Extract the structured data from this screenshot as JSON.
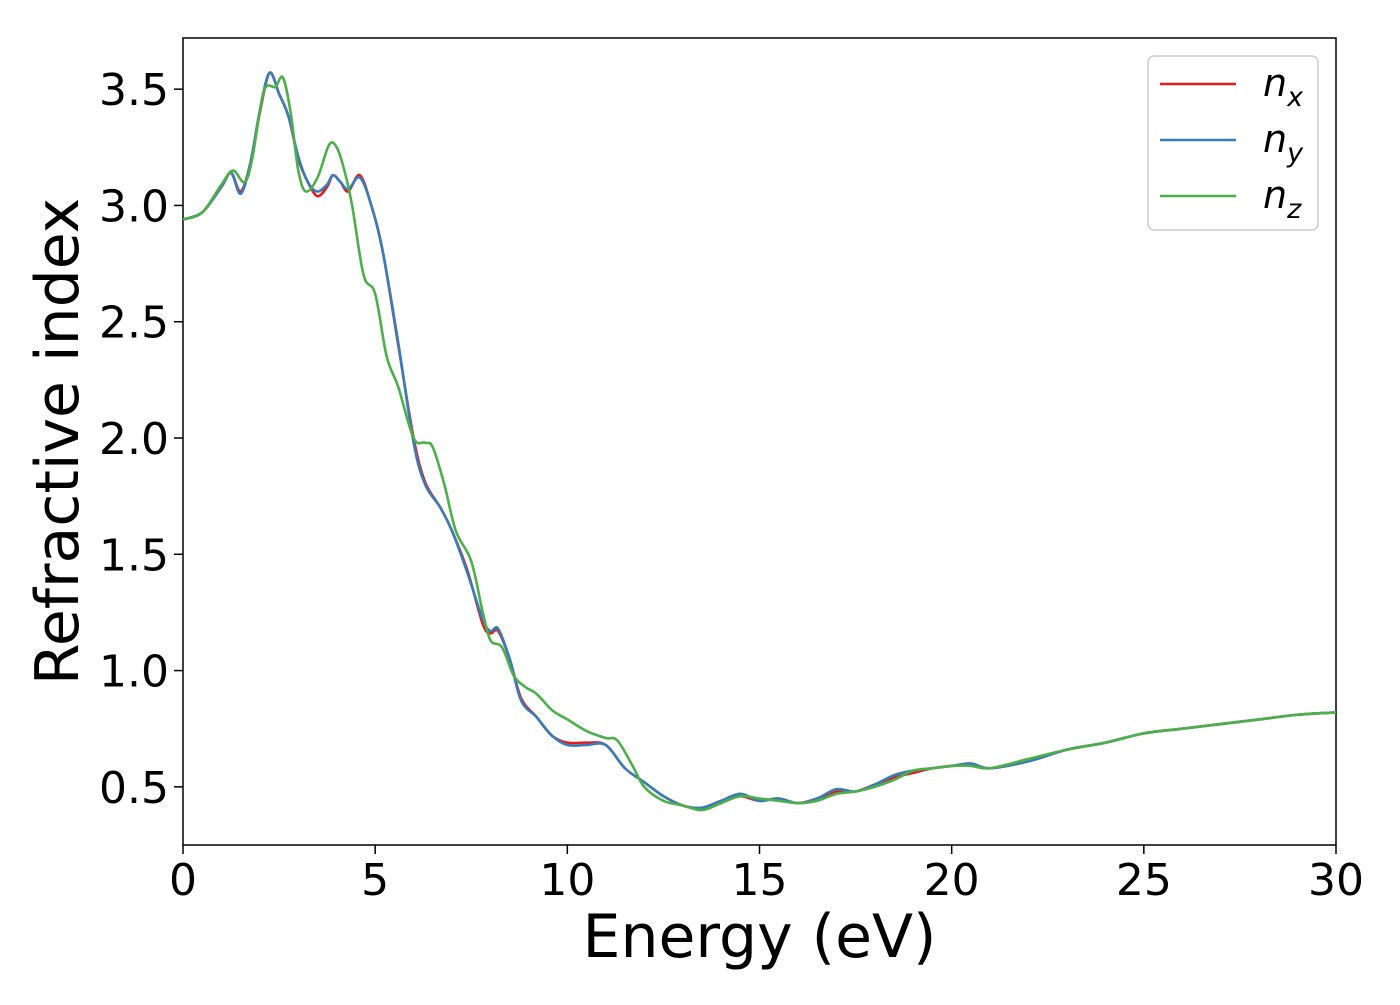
{
  "chart_data": {
    "type": "line",
    "title": "",
    "xlabel": "Energy (eV)",
    "ylabel": "Refractive index",
    "xlim": [
      0,
      30
    ],
    "ylim": [
      0.25,
      3.72
    ],
    "xticks": [
      0,
      5,
      10,
      15,
      20,
      25,
      30
    ],
    "xtick_labels": [
      "0",
      "5",
      "10",
      "15",
      "20",
      "25",
      "30"
    ],
    "yticks": [
      0.5,
      1.0,
      1.5,
      2.0,
      2.5,
      3.0,
      3.5
    ],
    "ytick_labels": [
      "0.5",
      "1.0",
      "1.5",
      "2.0",
      "2.5",
      "3.0",
      "3.5"
    ],
    "grid": false,
    "legend_position": "top-right",
    "series": [
      {
        "name": "n_x",
        "label_base": "n",
        "label_sub": "x",
        "color": "#e41a1c",
        "x": [
          0,
          0.5,
          1.0,
          1.25,
          1.5,
          1.75,
          2.0,
          2.25,
          2.5,
          2.75,
          3.0,
          3.25,
          3.5,
          3.75,
          3.9,
          4.1,
          4.3,
          4.6,
          4.9,
          5.2,
          5.6,
          6.0,
          6.3,
          6.7,
          7.0,
          7.4,
          7.8,
          8.0,
          8.2,
          8.5,
          8.8,
          9.2,
          9.6,
          10.0,
          10.5,
          11.0,
          11.5,
          12.0,
          12.5,
          13.0,
          13.5,
          14.0,
          14.5,
          15.0,
          15.5,
          16.0,
          16.5,
          17.0,
          17.5,
          18.0,
          18.5,
          19.0,
          19.5,
          20.0,
          20.5,
          21.0,
          22.0,
          23.0,
          24.0,
          25.0,
          26.0,
          27.0,
          28.0,
          29.0,
          30.0
        ],
        "values": [
          2.94,
          2.97,
          3.08,
          3.14,
          3.06,
          3.18,
          3.4,
          3.57,
          3.48,
          3.38,
          3.2,
          3.1,
          3.04,
          3.08,
          3.13,
          3.1,
          3.06,
          3.13,
          3.0,
          2.8,
          2.4,
          2.0,
          1.81,
          1.7,
          1.6,
          1.43,
          1.2,
          1.16,
          1.17,
          1.05,
          0.88,
          0.8,
          0.72,
          0.69,
          0.69,
          0.68,
          0.58,
          0.52,
          0.46,
          0.42,
          0.41,
          0.44,
          0.46,
          0.44,
          0.45,
          0.43,
          0.45,
          0.48,
          0.48,
          0.51,
          0.54,
          0.56,
          0.58,
          0.59,
          0.6,
          0.58,
          0.61,
          0.66,
          0.69,
          0.73,
          0.75,
          0.77,
          0.79,
          0.81,
          0.82
        ]
      },
      {
        "name": "n_y",
        "label_base": "n",
        "label_sub": "y",
        "color": "#377eb8",
        "x": [
          0,
          0.5,
          1.0,
          1.25,
          1.5,
          1.75,
          2.0,
          2.25,
          2.5,
          2.75,
          3.0,
          3.25,
          3.5,
          3.75,
          3.9,
          4.1,
          4.3,
          4.6,
          4.9,
          5.2,
          5.6,
          6.0,
          6.3,
          6.7,
          7.0,
          7.4,
          7.8,
          8.0,
          8.2,
          8.5,
          8.8,
          9.2,
          9.6,
          10.0,
          10.5,
          11.0,
          11.5,
          12.0,
          12.5,
          13.0,
          13.5,
          14.0,
          14.5,
          15.0,
          15.5,
          16.0,
          16.5,
          17.0,
          17.5,
          18.0,
          18.5,
          19.0,
          19.5,
          20.0,
          20.5,
          21.0,
          22.0,
          23.0,
          24.0,
          25.0,
          26.0,
          27.0,
          28.0,
          29.0,
          30.0
        ],
        "values": [
          2.94,
          2.97,
          3.08,
          3.14,
          3.05,
          3.18,
          3.41,
          3.57,
          3.48,
          3.38,
          3.21,
          3.1,
          3.06,
          3.09,
          3.13,
          3.1,
          3.07,
          3.12,
          3.0,
          2.8,
          2.41,
          1.98,
          1.8,
          1.7,
          1.6,
          1.42,
          1.22,
          1.17,
          1.18,
          1.05,
          0.87,
          0.8,
          0.72,
          0.68,
          0.68,
          0.68,
          0.58,
          0.52,
          0.46,
          0.42,
          0.41,
          0.44,
          0.47,
          0.44,
          0.45,
          0.43,
          0.45,
          0.49,
          0.48,
          0.51,
          0.55,
          0.57,
          0.58,
          0.59,
          0.6,
          0.58,
          0.61,
          0.66,
          0.69,
          0.73,
          0.75,
          0.77,
          0.79,
          0.81,
          0.82
        ]
      },
      {
        "name": "n_z",
        "label_base": "n",
        "label_sub": "z",
        "color": "#4daf4a",
        "x": [
          0,
          0.5,
          1.0,
          1.3,
          1.6,
          1.8,
          2.1,
          2.4,
          2.6,
          2.8,
          3.0,
          3.2,
          3.5,
          3.8,
          4.0,
          4.2,
          4.4,
          4.7,
          5.0,
          5.3,
          5.6,
          6.0,
          6.3,
          6.5,
          6.8,
          7.1,
          7.5,
          7.8,
          8.0,
          8.3,
          8.6,
          8.9,
          9.2,
          9.6,
          10.0,
          10.5,
          11.0,
          11.3,
          11.7,
          12.0,
          12.5,
          13.0,
          13.5,
          14.0,
          14.5,
          15.0,
          15.5,
          16.0,
          16.5,
          17.0,
          17.5,
          18.0,
          18.5,
          19.0,
          19.5,
          20.0,
          20.5,
          21.0,
          22.0,
          23.0,
          24.0,
          25.0,
          26.0,
          27.0,
          28.0,
          29.0,
          30.0
        ],
        "values": [
          2.94,
          2.97,
          3.09,
          3.15,
          3.1,
          3.2,
          3.49,
          3.51,
          3.55,
          3.4,
          3.15,
          3.06,
          3.12,
          3.26,
          3.25,
          3.15,
          3.0,
          2.7,
          2.62,
          2.35,
          2.22,
          2.0,
          1.98,
          1.96,
          1.8,
          1.6,
          1.47,
          1.25,
          1.13,
          1.1,
          0.98,
          0.93,
          0.9,
          0.83,
          0.79,
          0.74,
          0.71,
          0.7,
          0.59,
          0.5,
          0.44,
          0.42,
          0.4,
          0.43,
          0.46,
          0.45,
          0.44,
          0.43,
          0.44,
          0.47,
          0.48,
          0.5,
          0.53,
          0.57,
          0.58,
          0.59,
          0.59,
          0.58,
          0.62,
          0.66,
          0.69,
          0.73,
          0.75,
          0.77,
          0.79,
          0.81,
          0.82
        ]
      }
    ]
  }
}
